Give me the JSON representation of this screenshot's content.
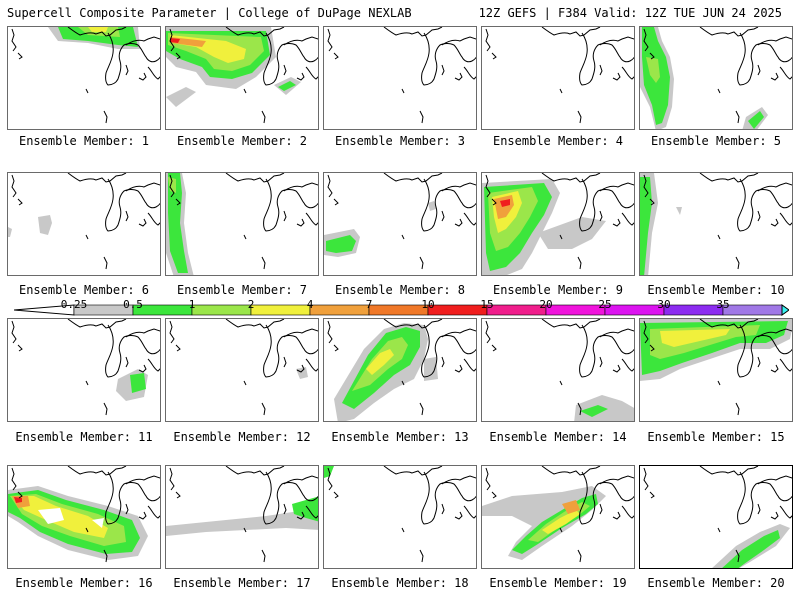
{
  "header": {
    "left_title": "Supercell Composite Parameter | College of DuPage NEXLAB",
    "right_title": "12Z GEFS | F384 Valid: 12Z TUE JUN 24 2025"
  },
  "legend": {
    "levels": [
      "0.25",
      "0.5",
      "1",
      "2",
      "4",
      "7",
      "10",
      "15",
      "20",
      "25",
      "30",
      "35"
    ],
    "colors": [
      "#c8c8c8",
      "#3ce63c",
      "#9be64a",
      "#f0f03c",
      "#f0a03c",
      "#f07828",
      "#f01e1e",
      "#f01e8c",
      "#f014dc",
      "#dc14f0",
      "#8c2cf0",
      "#a078e6",
      "#3cf0f0"
    ]
  },
  "members": [
    {
      "label": "Ensemble Member: 1"
    },
    {
      "label": "Ensemble Member: 2"
    },
    {
      "label": "Ensemble Member: 3"
    },
    {
      "label": "Ensemble Member: 4"
    },
    {
      "label": "Ensemble Member: 5"
    },
    {
      "label": "Ensemble Member: 6"
    },
    {
      "label": "Ensemble Member: 7"
    },
    {
      "label": "Ensemble Member: 8"
    },
    {
      "label": "Ensemble Member: 9"
    },
    {
      "label": "Ensemble Member: 10"
    },
    {
      "label": "Ensemble Member: 11"
    },
    {
      "label": "Ensemble Member: 12"
    },
    {
      "label": "Ensemble Member: 13"
    },
    {
      "label": "Ensemble Member: 14"
    },
    {
      "label": "Ensemble Member: 15"
    },
    {
      "label": "Ensemble Member: 16"
    },
    {
      "label": "Ensemble Member: 17"
    },
    {
      "label": "Ensemble Member: 18"
    },
    {
      "label": "Ensemble Member: 19"
    },
    {
      "label": "Ensemble Member: 20"
    }
  ]
}
